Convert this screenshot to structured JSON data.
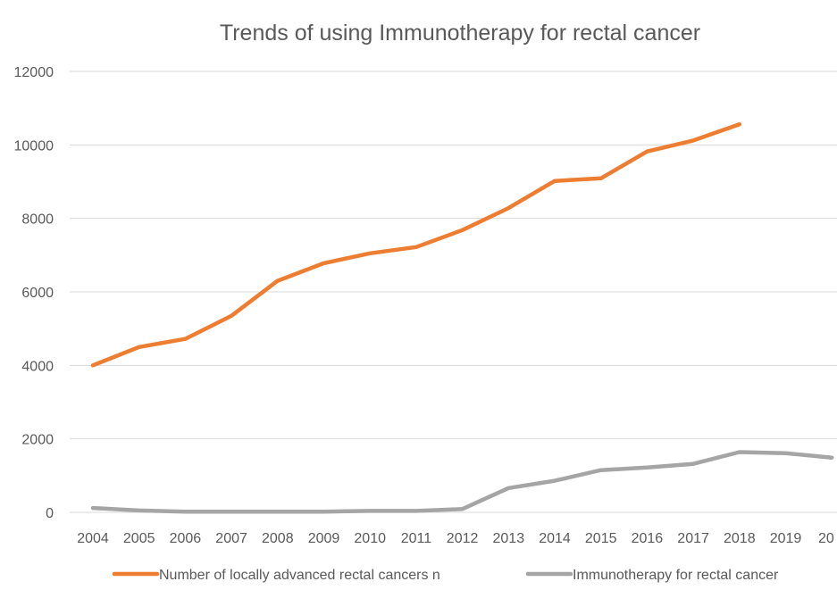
{
  "chart_data": {
    "type": "line",
    "title": "Trends of using Immunotherapy for rectal cancer",
    "xlabel": "",
    "ylabel": "",
    "categories": [
      "2004",
      "2005",
      "2006",
      "2007",
      "2008",
      "2009",
      "2010",
      "2011",
      "2012",
      "2013",
      "2014",
      "2015",
      "2016",
      "2017",
      "2018",
      "2019",
      "20"
    ],
    "y_ticks": [
      "0",
      "2000",
      "4000",
      "6000",
      "8000",
      "10000",
      "12000"
    ],
    "ylim": [
      0,
      12000
    ],
    "grid": true,
    "legend_position": "bottom",
    "series": [
      {
        "name": "Number of locally advanced rectal cancers n",
        "color": "#ED7D31",
        "values": [
          4000,
          4500,
          4720,
          5350,
          6300,
          6780,
          7050,
          7220,
          7680,
          8280,
          9020,
          9090,
          9820,
          10120,
          10560,
          null,
          null
        ]
      },
      {
        "name": "Immunotherapy for rectal cancer",
        "color": "#A5A5A5",
        "values": [
          120,
          50,
          20,
          20,
          20,
          20,
          40,
          40,
          90,
          660,
          860,
          1150,
          1220,
          1320,
          1640,
          1610,
          1490
        ]
      }
    ]
  }
}
